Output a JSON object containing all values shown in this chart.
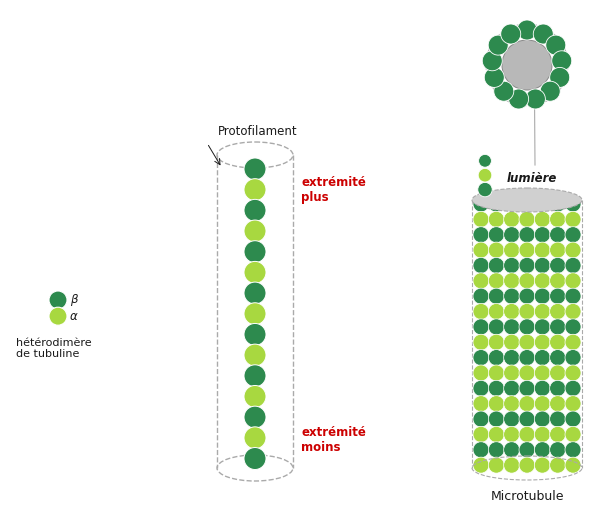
{
  "dark_green": "#2d8a4e",
  "light_green": "#a8d840",
  "gray_lumen": "#b8b8b8",
  "dashed_color": "#aaaaaa",
  "background": "#ffffff",
  "text_color": "#1a1a1a",
  "red_text": "#cc0000",
  "label_fontsize": 8.5,
  "small_fontsize": 8,
  "beta_label": "β",
  "alpha_label": "α",
  "heterodimer_label": "hétérodimère\nde tubuline",
  "protofilament_label": "Protofilament",
  "extremite_plus": "extrémité\nplus",
  "extremite_moins": "extrémité\nmoins",
  "lumiere_label": "lumière",
  "microtubule_label": "Microtubule",
  "fig_width": 6.13,
  "fig_height": 5.12,
  "dpi": 100
}
